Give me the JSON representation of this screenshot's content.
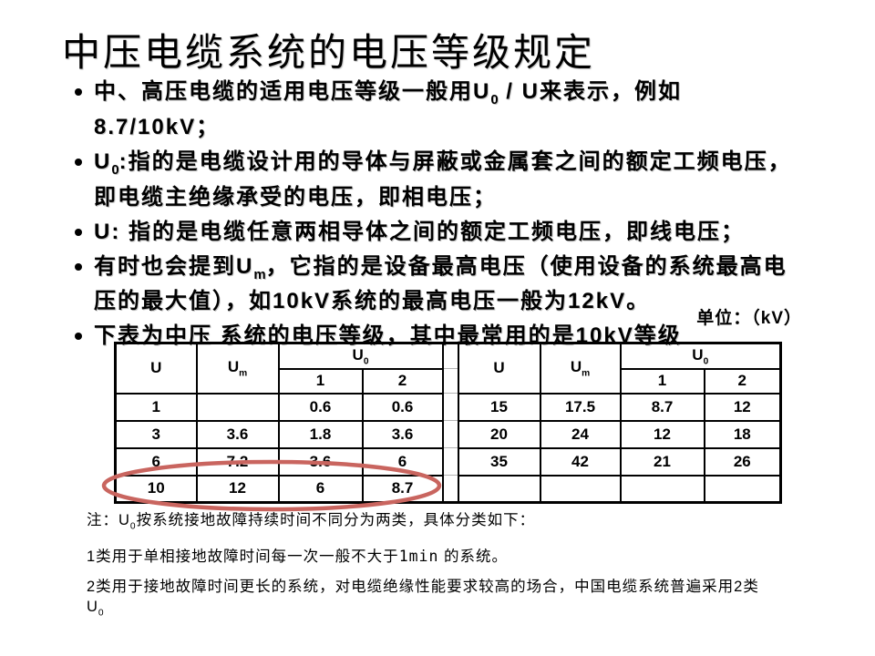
{
  "slide": {
    "title": "中压电缆系统的电压等级规定",
    "unit_label": "单位：（kV）",
    "highlight_color": "#c9655f"
  },
  "bullets": [
    {
      "segments": [
        {
          "t": "中、高压电缆的适用电压等级一般用U"
        },
        {
          "t": "0",
          "sub": true
        },
        {
          "t": " / U来表示，例如8.7/10kV；"
        }
      ]
    },
    {
      "segments": [
        {
          "t": "U"
        },
        {
          "t": "0",
          "sub": true
        },
        {
          "t": ":指的是电缆设计用的导体与屏蔽或金属套之间的额定工频电压，即电缆主绝缘承受的电压，即相电压；"
        }
      ]
    },
    {
      "segments": [
        {
          "t": "U: 指的是电缆任意两相导体之间的额定工频电压，即线电压；"
        }
      ]
    },
    {
      "segments": [
        {
          "t": "有时也会提到U"
        },
        {
          "t": "m",
          "sub": true
        },
        {
          "t": "，它指的是设备最高电压（使用设备的系统最高电压的最大值），如10kV系统的最高电压一般为12kV。"
        }
      ]
    },
    {
      "segments": [
        {
          "t": "下表为中压 系统的电压等级，其中最常用的是10kV等级"
        }
      ]
    }
  ],
  "table": {
    "header_u": "U",
    "header_um": [
      {
        "t": "U"
      },
      {
        "t": "m",
        "sub": true
      }
    ],
    "header_u0": [
      {
        "t": "U"
      },
      {
        "t": "0",
        "sub": true
      }
    ],
    "class1_label": "1",
    "class2_label": "2",
    "left_rows": [
      [
        "1",
        "",
        "0.6",
        "0.6"
      ],
      [
        "3",
        "3.6",
        "1.8",
        "3.6"
      ],
      [
        "6",
        "7.2",
        "3.6",
        "6"
      ],
      [
        "10",
        "12",
        "6",
        "8.7"
      ]
    ],
    "right_rows": [
      [
        "15",
        "17.5",
        "8.7",
        "12"
      ],
      [
        "20",
        "24",
        "12",
        "18"
      ],
      [
        "35",
        "42",
        "21",
        "26"
      ],
      [
        "",
        "",
        "",
        ""
      ]
    ]
  },
  "notes": [
    {
      "segments": [
        {
          "t": "注：U"
        },
        {
          "t": "0",
          "sub": true
        },
        {
          "t": "按系统接地故障持续时间不同分为两类，具体分类如下："
        }
      ]
    },
    {
      "segments": [
        {
          "t": "1类用于单相接地故障时间每一次一般不大于"
        },
        {
          "t": "1min",
          "mono": true
        },
        {
          "t": " 的系统。"
        }
      ]
    },
    {
      "segments": [
        {
          "t": "2类用于接地故障时间更长的系统，对电缆绝缘性能要求较高的场合，中国电缆系统普遍采用2类U"
        },
        {
          "t": "0",
          "sub": true
        }
      ]
    }
  ]
}
